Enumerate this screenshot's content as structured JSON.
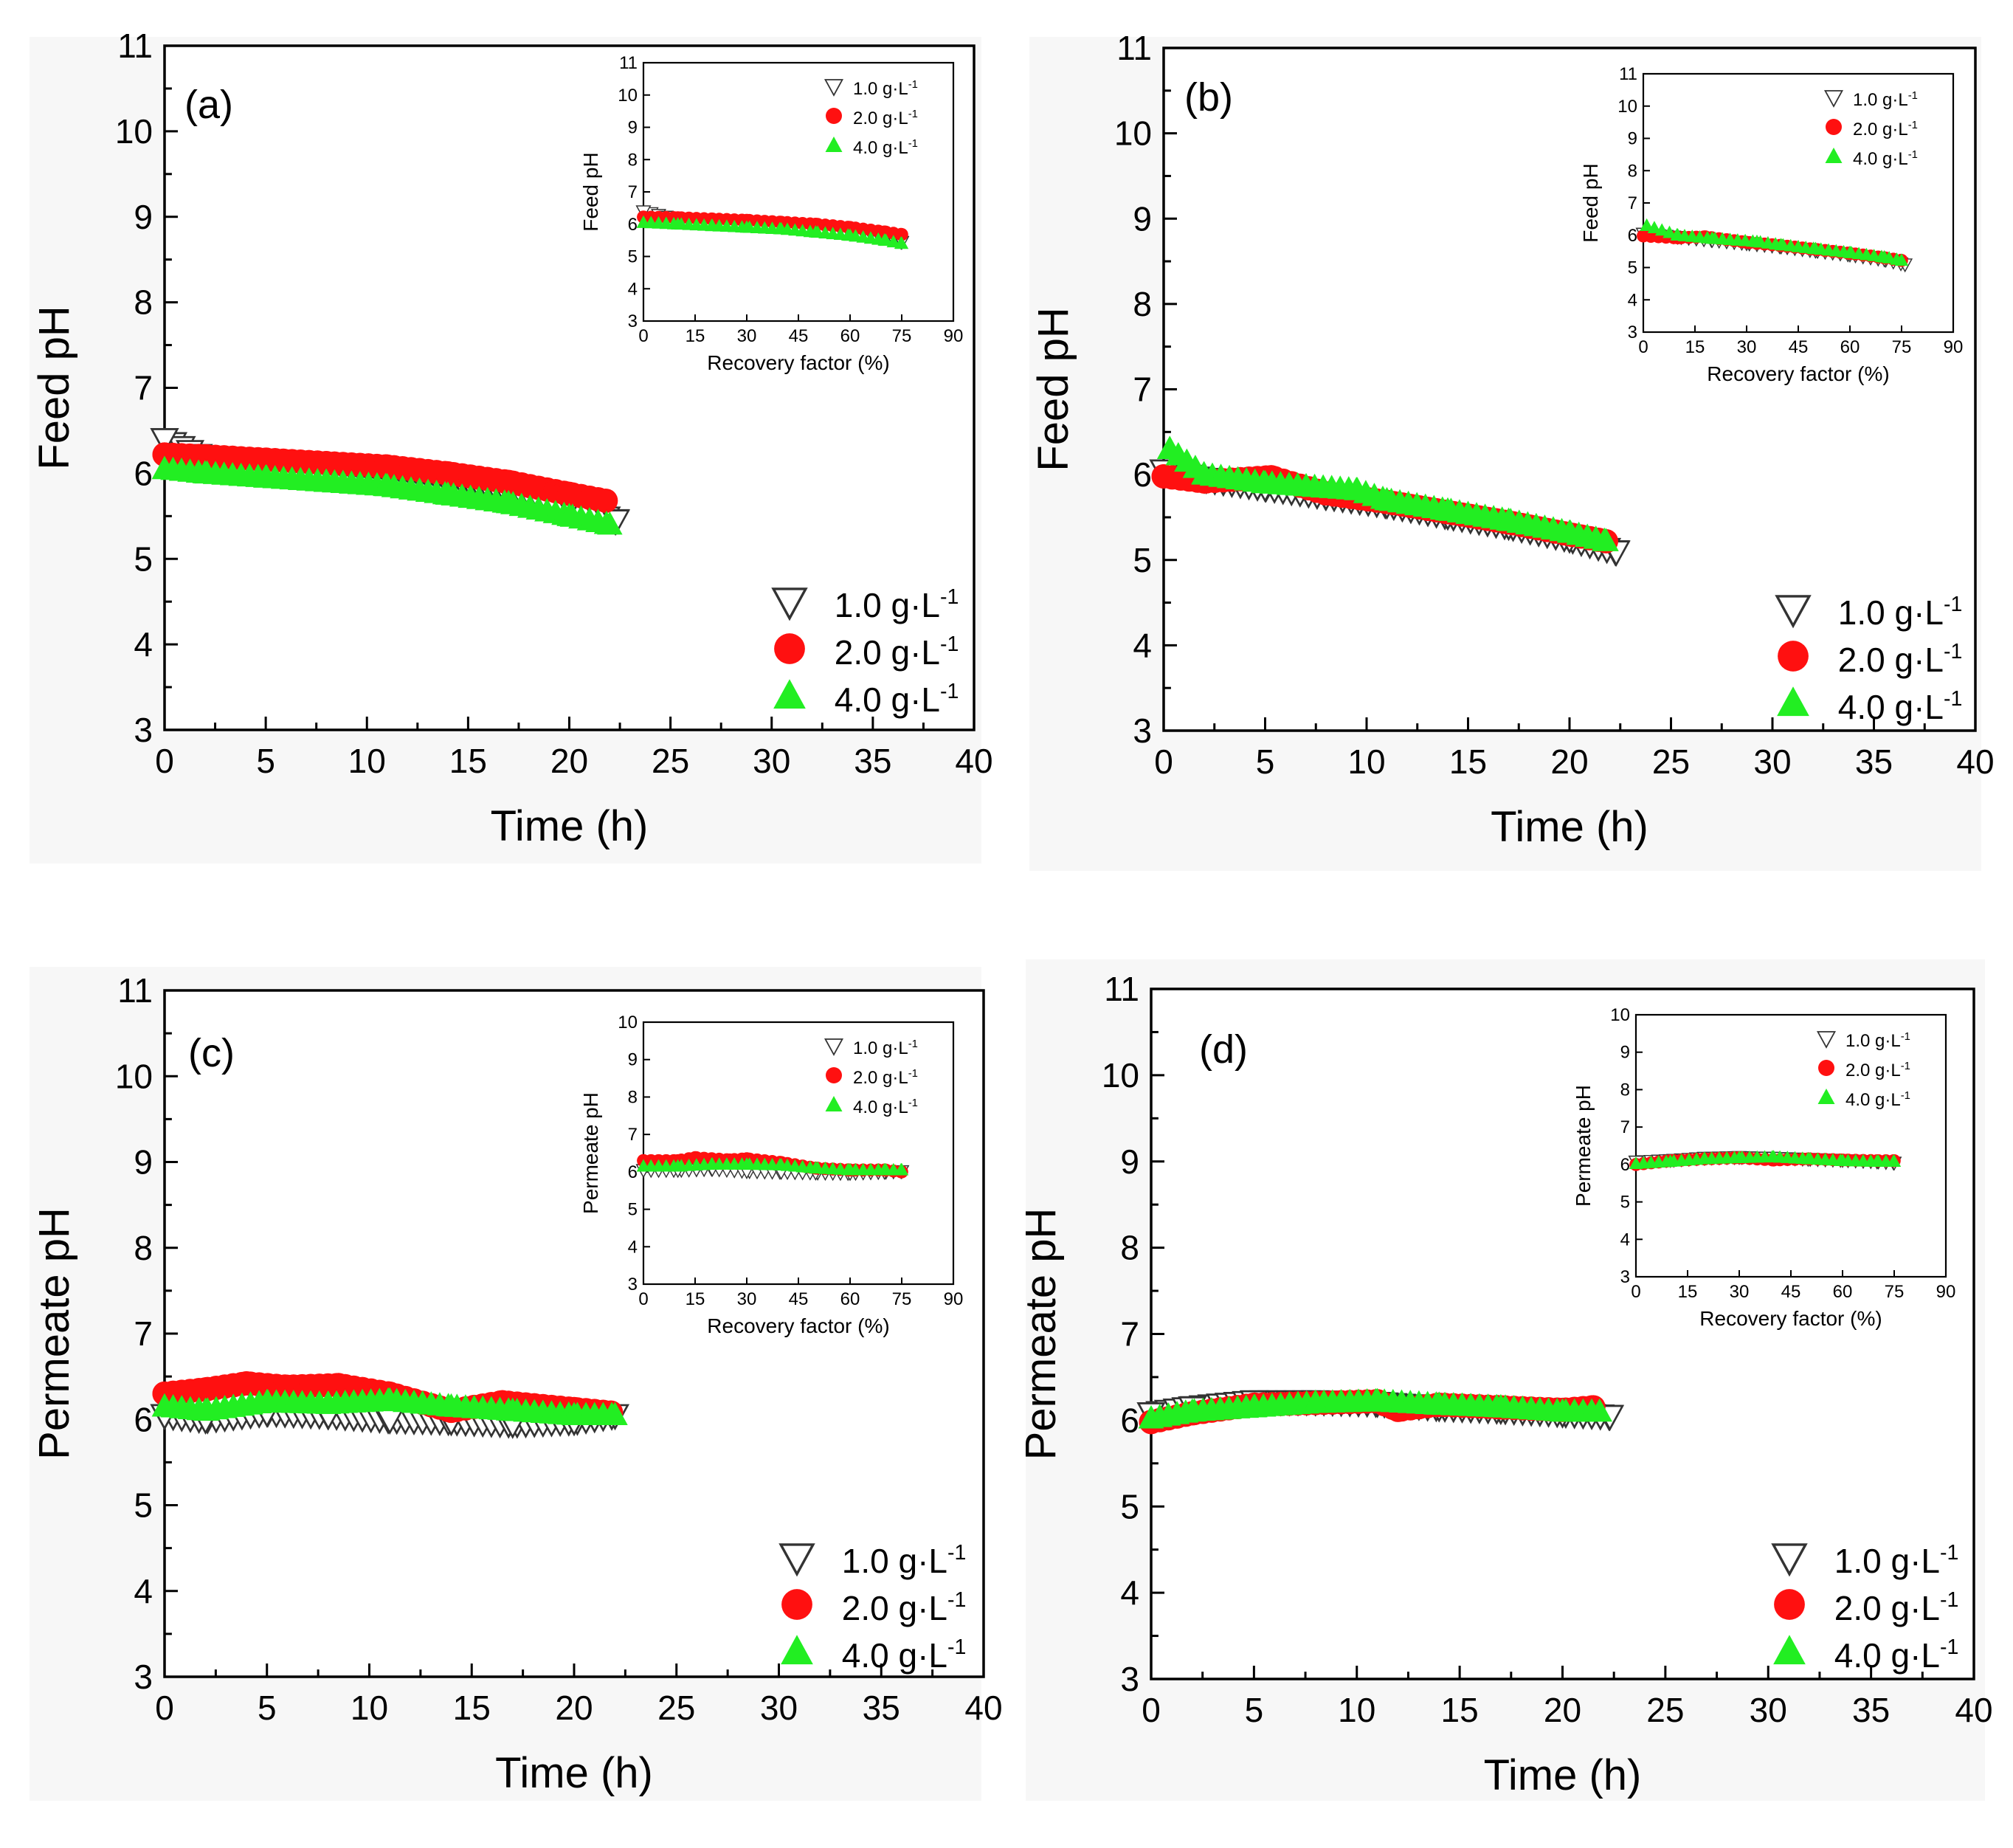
{
  "figure": {
    "colors": {
      "tri_down": "#ffffff",
      "tri_down_stroke": "#333333",
      "circle": "#ff1010",
      "tri_up": "#22ee22",
      "line": "#000000"
    },
    "legend": [
      {
        "label": "1.0 g·L",
        "sup": "-1",
        "marker": "tri_down"
      },
      {
        "label": "2.0 g·L",
        "sup": "-1",
        "marker": "circle"
      },
      {
        "label": "4.0 g·L",
        "sup": "-1",
        "marker": "tri_up"
      }
    ]
  },
  "chart_data": [
    {
      "panel": "(a)",
      "type": "scatter",
      "xlabel": "Time (h)",
      "ylabel": "Feed pH",
      "xlim": [
        0,
        40
      ],
      "ylim": [
        3,
        11
      ],
      "xticks": [
        0,
        5,
        10,
        15,
        20,
        25,
        30,
        35,
        40
      ],
      "yticks": [
        3,
        4,
        5,
        6,
        7,
        8,
        9,
        10,
        11
      ],
      "series": [
        {
          "name": "1.0 g·L-1",
          "x": [
            0,
            2,
            5,
            8,
            11,
            14,
            17,
            20,
            22.3
          ],
          "y": [
            6.4,
            6.18,
            6.12,
            6.08,
            6.02,
            5.93,
            5.8,
            5.62,
            5.45
          ]
        },
        {
          "name": "2.0 g·L-1",
          "x": [
            0,
            2,
            5,
            8,
            11,
            14,
            17,
            20,
            21.8
          ],
          "y": [
            6.22,
            6.2,
            6.16,
            6.12,
            6.08,
            6.0,
            5.9,
            5.76,
            5.68
          ]
        },
        {
          "name": "4.0 g·L-1",
          "x": [
            0,
            2,
            5,
            8,
            11,
            14,
            17,
            20,
            22
          ],
          "y": [
            6.05,
            6.0,
            5.95,
            5.9,
            5.85,
            5.75,
            5.65,
            5.5,
            5.4
          ]
        }
      ],
      "inset": {
        "xlabel": "Recovery factor (%)",
        "ylabel": "Feed pH",
        "xlim": [
          0,
          90
        ],
        "ylim": [
          3,
          11
        ],
        "xticks": [
          0,
          15,
          30,
          45,
          60,
          75,
          90
        ],
        "yticks": [
          3,
          4,
          5,
          6,
          7,
          8,
          9,
          10,
          11
        ],
        "series": [
          {
            "name": "1.0 g·L-1",
            "x": [
              0,
              10,
              20,
              30,
              40,
              50,
              60,
              70,
              75
            ],
            "y": [
              6.4,
              6.15,
              6.1,
              6.05,
              6.0,
              5.92,
              5.8,
              5.62,
              5.45
            ]
          },
          {
            "name": "2.0 g·L-1",
            "x": [
              0,
              10,
              20,
              30,
              40,
              50,
              60,
              70,
              75
            ],
            "y": [
              6.22,
              6.2,
              6.16,
              6.12,
              6.06,
              6.0,
              5.9,
              5.76,
              5.68
            ]
          },
          {
            "name": "4.0 g·L-1",
            "x": [
              0,
              10,
              20,
              30,
              40,
              50,
              60,
              70,
              75
            ],
            "y": [
              6.05,
              6.0,
              5.95,
              5.9,
              5.85,
              5.75,
              5.65,
              5.5,
              5.4
            ]
          }
        ]
      }
    },
    {
      "panel": "(b)",
      "type": "scatter",
      "xlabel": "Time (h)",
      "ylabel": "Feed pH",
      "xlim": [
        0,
        40
      ],
      "ylim": [
        3,
        11
      ],
      "xticks": [
        0,
        5,
        10,
        15,
        20,
        25,
        30,
        35,
        40
      ],
      "yticks": [
        3,
        4,
        5,
        6,
        7,
        8,
        9,
        10,
        11
      ],
      "series": [
        {
          "name": "1.0 g·L-1",
          "x": [
            0,
            2,
            5,
            8,
            11,
            14,
            17,
            20,
            22.3
          ],
          "y": [
            6.05,
            5.95,
            5.85,
            5.75,
            5.65,
            5.52,
            5.4,
            5.25,
            5.1
          ]
        },
        {
          "name": "2.0 g·L-1",
          "x": [
            0,
            2,
            5.3,
            8,
            11,
            14,
            17,
            20,
            21.8
          ],
          "y": [
            5.98,
            5.92,
            5.97,
            5.78,
            5.68,
            5.56,
            5.44,
            5.3,
            5.22
          ]
        },
        {
          "name": "4.0 g·L-1",
          "x": [
            0.3,
            2,
            5,
            9.5,
            11,
            14,
            17,
            20,
            21.8
          ],
          "y": [
            6.3,
            6.0,
            5.9,
            5.82,
            5.7,
            5.58,
            5.46,
            5.32,
            5.22
          ]
        }
      ],
      "inset": {
        "xlabel": "Recovery factor (%)",
        "ylabel": "Feed pH",
        "xlim": [
          0,
          90
        ],
        "ylim": [
          3,
          11
        ],
        "xticks": [
          0,
          15,
          30,
          45,
          60,
          75,
          90
        ],
        "yticks": [
          3,
          4,
          5,
          6,
          7,
          8,
          9,
          10,
          11
        ],
        "series": [
          {
            "name": "1.0 g·L-1",
            "x": [
              0,
              10,
              20,
              30,
              40,
              50,
              60,
              70,
              76
            ],
            "y": [
              6.05,
              5.95,
              5.85,
              5.75,
              5.65,
              5.52,
              5.4,
              5.25,
              5.1
            ]
          },
          {
            "name": "2.0 g·L-1",
            "x": [
              0,
              10,
              18,
              30,
              40,
              50,
              60,
              70,
              75
            ],
            "y": [
              5.98,
              5.92,
              5.95,
              5.78,
              5.68,
              5.56,
              5.44,
              5.3,
              5.22
            ]
          },
          {
            "name": "4.0 g·L-1",
            "x": [
              1,
              10,
              20,
              33,
              40,
              50,
              60,
              70,
              75
            ],
            "y": [
              6.3,
              6.0,
              5.9,
              5.8,
              5.7,
              5.58,
              5.46,
              5.32,
              5.22
            ]
          }
        ]
      }
    },
    {
      "panel": "(c)",
      "type": "scatter",
      "xlabel": "Time (h)",
      "ylabel": "Permeate pH",
      "xlim": [
        0,
        40
      ],
      "ylim": [
        3,
        11
      ],
      "xticks": [
        0,
        5,
        10,
        15,
        20,
        25,
        30,
        35,
        40
      ],
      "yticks": [
        3,
        4,
        5,
        6,
        7,
        8,
        9,
        10,
        11
      ],
      "series": [
        {
          "name": "1.0 g·L-1",
          "x": [
            0,
            2,
            5,
            8,
            11,
            14,
            17,
            20,
            22
          ],
          "y": [
            6.05,
            6.0,
            6.08,
            6.05,
            6.0,
            5.98,
            5.95,
            5.98,
            6.05
          ]
        },
        {
          "name": "2.0 g·L-1",
          "x": [
            0,
            2,
            4,
            6,
            8.5,
            11,
            14,
            16.5,
            20,
            21.8
          ],
          "y": [
            6.3,
            6.35,
            6.42,
            6.38,
            6.4,
            6.3,
            6.1,
            6.2,
            6.12,
            6.08
          ]
        },
        {
          "name": "4.0 g·L-1",
          "x": [
            0,
            2,
            5,
            8,
            11,
            14,
            17,
            20,
            22
          ],
          "y": [
            6.15,
            6.1,
            6.2,
            6.18,
            6.22,
            6.15,
            6.1,
            6.05,
            6.05
          ]
        }
      ],
      "inset": {
        "xlabel": "Recovery factor (%)",
        "ylabel": "Permeate pH",
        "xlim": [
          0,
          90
        ],
        "ylim": [
          3,
          10
        ],
        "xticks": [
          0,
          15,
          30,
          45,
          60,
          75,
          90
        ],
        "yticks": [
          3,
          4,
          5,
          6,
          7,
          8,
          9,
          10
        ],
        "series": [
          {
            "name": "1.0 g·L-1",
            "x": [
              0,
              10,
              20,
              30,
              40,
              50,
              60,
              70,
              75
            ],
            "y": [
              6.05,
              6.05,
              6.08,
              6.02,
              6.0,
              5.98,
              5.97,
              6.0,
              6.02
            ]
          },
          {
            "name": "2.0 g·L-1",
            "x": [
              0,
              10,
              15,
              25,
              30,
              40,
              50,
              60,
              70,
              75
            ],
            "y": [
              6.3,
              6.3,
              6.38,
              6.32,
              6.35,
              6.25,
              6.1,
              6.05,
              6.05,
              6.0
            ]
          },
          {
            "name": "4.0 g·L-1",
            "x": [
              0,
              10,
              20,
              30,
              40,
              50,
              60,
              70,
              75
            ],
            "y": [
              6.15,
              6.15,
              6.2,
              6.2,
              6.18,
              6.1,
              6.05,
              6.05,
              6.05
            ]
          }
        ]
      }
    },
    {
      "panel": "(d)",
      "type": "scatter",
      "xlabel": "Time (h)",
      "ylabel": "Permeate pH",
      "xlim": [
        0,
        40
      ],
      "ylim": [
        3,
        11
      ],
      "xticks": [
        0,
        5,
        10,
        15,
        20,
        25,
        30,
        35,
        40
      ],
      "yticks": [
        3,
        4,
        5,
        6,
        7,
        8,
        9,
        10,
        11
      ],
      "series": [
        {
          "name": "1.0 g·L-1",
          "x": [
            0,
            2,
            5,
            8,
            11,
            14,
            17,
            20,
            22.3
          ],
          "y": [
            6.08,
            6.15,
            6.22,
            6.22,
            6.2,
            6.15,
            6.12,
            6.08,
            6.05
          ]
        },
        {
          "name": "2.0 g·L-1",
          "x": [
            0,
            2,
            5,
            8,
            11,
            12,
            14,
            17,
            20,
            21.5
          ],
          "y": [
            5.98,
            6.08,
            6.18,
            6.2,
            6.22,
            6.12,
            6.18,
            6.15,
            6.12,
            6.15
          ]
        },
        {
          "name": "4.0 g·L-1",
          "x": [
            0,
            2,
            5,
            8,
            11,
            14,
            17,
            20,
            21.8
          ],
          "y": [
            6.02,
            6.1,
            6.15,
            6.2,
            6.22,
            6.18,
            6.15,
            6.1,
            6.1
          ]
        }
      ],
      "inset": {
        "xlabel": "Recovery factor (%)",
        "ylabel": "Permeate pH",
        "xlim": [
          0,
          90
        ],
        "ylim": [
          3,
          10
        ],
        "xticks": [
          0,
          15,
          30,
          45,
          60,
          75,
          90
        ],
        "yticks": [
          3,
          4,
          5,
          6,
          7,
          8,
          9,
          10
        ],
        "series": [
          {
            "name": "1.0 g·L-1",
            "x": [
              0,
              10,
              20,
              30,
              40,
              50,
              60,
              70,
              75
            ],
            "y": [
              6.08,
              6.12,
              6.18,
              6.2,
              6.18,
              6.15,
              6.12,
              6.08,
              6.05
            ]
          },
          {
            "name": "2.0 g·L-1",
            "x": [
              0,
              10,
              20,
              30,
              40,
              50,
              60,
              70,
              75
            ],
            "y": [
              6.0,
              6.1,
              6.15,
              6.18,
              6.12,
              6.15,
              6.12,
              6.1,
              6.1
            ]
          },
          {
            "name": "4.0 g·L-1",
            "x": [
              0,
              10,
              20,
              30,
              40,
              50,
              60,
              70,
              75
            ],
            "y": [
              6.02,
              6.08,
              6.15,
              6.18,
              6.2,
              6.15,
              6.1,
              6.08,
              6.08
            ]
          }
        ]
      }
    }
  ]
}
